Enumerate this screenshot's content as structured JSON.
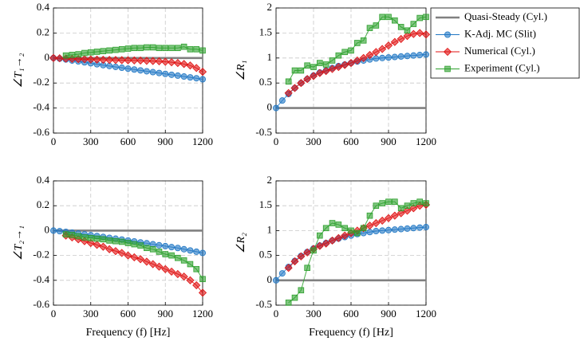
{
  "chart_data": [
    {
      "type": "line",
      "ylabel": "∠T₁→₂",
      "x": [
        0,
        50,
        100,
        150,
        200,
        250,
        300,
        350,
        400,
        450,
        500,
        550,
        600,
        650,
        700,
        750,
        800,
        850,
        900,
        950,
        1000,
        1050,
        1100,
        1150,
        1200
      ],
      "xlim": [
        0,
        1200
      ],
      "xticks": [
        0,
        300,
        600,
        900,
        1200
      ],
      "ylim": [
        -0.6,
        0.4
      ],
      "yticks": [
        -0.6,
        -0.4,
        -0.2,
        0,
        0.2,
        0.4
      ],
      "grid": true,
      "series": [
        {
          "color": "#808080",
          "marker": "none",
          "values": [
            0,
            0,
            0,
            0,
            0,
            0,
            0,
            0,
            0,
            0,
            0,
            0,
            0,
            0,
            0,
            0,
            0,
            0,
            0,
            0,
            0,
            0,
            0,
            0,
            0
          ]
        },
        {
          "color": "#1f77c4",
          "marker": "circle",
          "values": [
            0,
            -0.005,
            -0.012,
            -0.02,
            -0.027,
            -0.035,
            -0.042,
            -0.05,
            -0.057,
            -0.064,
            -0.071,
            -0.078,
            -0.085,
            -0.092,
            -0.099,
            -0.106,
            -0.113,
            -0.12,
            -0.127,
            -0.134,
            -0.141,
            -0.148,
            -0.155,
            -0.162,
            -0.17
          ]
        },
        {
          "color": "#e01010",
          "marker": "diamond",
          "values": [
            0,
            -0.002,
            -0.005,
            -0.007,
            -0.009,
            -0.01,
            -0.012,
            -0.013,
            -0.014,
            -0.015,
            -0.016,
            -0.017,
            -0.018,
            -0.019,
            -0.02,
            -0.022,
            -0.024,
            -0.026,
            -0.03,
            -0.034,
            -0.04,
            -0.048,
            -0.06,
            -0.08,
            -0.11
          ]
        },
        {
          "color": "#2ca02c",
          "marker": "square",
          "values": [
            null,
            null,
            0.02,
            0.025,
            0.03,
            0.04,
            0.045,
            0.05,
            0.055,
            0.06,
            0.065,
            0.07,
            0.075,
            0.08,
            0.08,
            0.085,
            0.085,
            0.08,
            0.08,
            0.08,
            0.08,
            0.09,
            0.07,
            0.07,
            0.06
          ]
        }
      ]
    },
    {
      "type": "line",
      "ylabel": "∠R₁",
      "legend": "right",
      "x": [
        0,
        50,
        100,
        150,
        200,
        250,
        300,
        350,
        400,
        450,
        500,
        550,
        600,
        650,
        700,
        750,
        800,
        850,
        900,
        950,
        1000,
        1050,
        1100,
        1150,
        1200
      ],
      "xlim": [
        0,
        1200
      ],
      "xticks": [
        0,
        300,
        600,
        900,
        1200
      ],
      "ylim": [
        -0.5,
        2
      ],
      "yticks": [
        -0.5,
        0,
        0.5,
        1,
        1.5,
        2
      ],
      "grid": true,
      "series": [
        {
          "name": "Quasi-Steady (Cyl.)",
          "color": "#808080",
          "marker": "none",
          "values": [
            0,
            0,
            0,
            0,
            0,
            0,
            0,
            0,
            0,
            0,
            0,
            0,
            0,
            0,
            0,
            0,
            0,
            0,
            0,
            0,
            0,
            0,
            0,
            0,
            0
          ]
        },
        {
          "name": "K-Adj. MC (Slit)",
          "color": "#1f77c4",
          "marker": "circle",
          "values": [
            0,
            0.15,
            0.28,
            0.4,
            0.5,
            0.58,
            0.65,
            0.71,
            0.75,
            0.8,
            0.84,
            0.87,
            0.9,
            0.93,
            0.95,
            0.97,
            0.99,
            1.0,
            1.01,
            1.02,
            1.03,
            1.04,
            1.05,
            1.06,
            1.07
          ]
        },
        {
          "name": "Numerical (Cyl.)",
          "color": "#e01010",
          "marker": "diamond",
          "values": [
            null,
            null,
            0.3,
            0.4,
            0.5,
            0.58,
            0.64,
            0.7,
            0.74,
            0.78,
            0.82,
            0.86,
            0.9,
            0.95,
            1.0,
            1.06,
            1.12,
            1.18,
            1.25,
            1.32,
            1.38,
            1.44,
            1.48,
            1.5,
            1.47
          ]
        },
        {
          "name": "Experiment (Cyl.)",
          "color": "#2ca02c",
          "marker": "square",
          "values": [
            null,
            null,
            0.53,
            0.75,
            0.75,
            0.85,
            0.82,
            0.9,
            0.87,
            0.95,
            1.05,
            1.12,
            1.15,
            1.3,
            1.35,
            1.6,
            1.65,
            1.82,
            1.82,
            1.75,
            1.62,
            1.55,
            1.68,
            1.8,
            1.82
          ]
        }
      ]
    },
    {
      "type": "line",
      "ylabel": "∠T₂→₁",
      "xlabel": "Frequency (f) [Hz]",
      "x": [
        0,
        50,
        100,
        150,
        200,
        250,
        300,
        350,
        400,
        450,
        500,
        550,
        600,
        650,
        700,
        750,
        800,
        850,
        900,
        950,
        1000,
        1050,
        1100,
        1150,
        1200
      ],
      "xlim": [
        0,
        1200
      ],
      "xticks": [
        0,
        300,
        600,
        900,
        1200
      ],
      "ylim": [
        -0.6,
        0.4
      ],
      "yticks": [
        -0.6,
        -0.4,
        -0.2,
        0,
        0.2,
        0.4
      ],
      "grid": true,
      "series": [
        {
          "color": "#808080",
          "marker": "none",
          "values": [
            0,
            0,
            0,
            0,
            0,
            0,
            0,
            0,
            0,
            0,
            0,
            0,
            0,
            0,
            0,
            0,
            0,
            0,
            0,
            0,
            0,
            0,
            0,
            0,
            0
          ]
        },
        {
          "color": "#1f77c4",
          "marker": "circle",
          "values": [
            0,
            -0.005,
            -0.01,
            -0.017,
            -0.024,
            -0.03,
            -0.037,
            -0.044,
            -0.051,
            -0.058,
            -0.065,
            -0.072,
            -0.08,
            -0.087,
            -0.095,
            -0.102,
            -0.11,
            -0.118,
            -0.125,
            -0.133,
            -0.14,
            -0.15,
            -0.16,
            -0.17,
            -0.18
          ]
        },
        {
          "color": "#e01010",
          "marker": "diamond",
          "values": [
            null,
            null,
            -0.04,
            -0.055,
            -0.07,
            -0.085,
            -0.1,
            -0.115,
            -0.13,
            -0.15,
            -0.165,
            -0.18,
            -0.2,
            -0.215,
            -0.23,
            -0.25,
            -0.27,
            -0.29,
            -0.31,
            -0.33,
            -0.35,
            -0.37,
            -0.4,
            -0.44,
            -0.5
          ]
        },
        {
          "color": "#2ca02c",
          "marker": "square",
          "values": [
            null,
            null,
            -0.03,
            -0.035,
            -0.045,
            -0.055,
            -0.06,
            -0.065,
            -0.07,
            -0.08,
            -0.085,
            -0.09,
            -0.1,
            -0.11,
            -0.12,
            -0.14,
            -0.15,
            -0.17,
            -0.19,
            -0.2,
            -0.22,
            -0.24,
            -0.27,
            -0.31,
            -0.39
          ]
        }
      ]
    },
    {
      "type": "line",
      "ylabel": "∠R₂",
      "xlabel": "Frequency (f) [Hz]",
      "x": [
        0,
        50,
        100,
        150,
        200,
        250,
        300,
        350,
        400,
        450,
        500,
        550,
        600,
        650,
        700,
        750,
        800,
        850,
        900,
        950,
        1000,
        1050,
        1100,
        1150,
        1200
      ],
      "xlim": [
        0,
        1200
      ],
      "xticks": [
        0,
        300,
        600,
        900,
        1200
      ],
      "ylim": [
        -0.5,
        2
      ],
      "yticks": [
        -0.5,
        0,
        0.5,
        1,
        1.5,
        2
      ],
      "grid": true,
      "series": [
        {
          "color": "#808080",
          "marker": "none",
          "values": [
            0,
            0,
            0,
            0,
            0,
            0,
            0,
            0,
            0,
            0,
            0,
            0,
            0,
            0,
            0,
            0,
            0,
            0,
            0,
            0,
            0,
            0,
            0,
            0,
            0
          ]
        },
        {
          "color": "#1f77c4",
          "marker": "circle",
          "values": [
            0,
            0.14,
            0.27,
            0.39,
            0.49,
            0.57,
            0.64,
            0.7,
            0.75,
            0.8,
            0.84,
            0.87,
            0.9,
            0.93,
            0.95,
            0.97,
            0.99,
            1.0,
            1.01,
            1.02,
            1.03,
            1.04,
            1.05,
            1.06,
            1.07
          ]
        },
        {
          "color": "#e01010",
          "marker": "diamond",
          "values": [
            null,
            null,
            0.25,
            0.38,
            0.48,
            0.56,
            0.63,
            0.69,
            0.74,
            0.8,
            0.85,
            0.9,
            0.95,
            1.0,
            1.05,
            1.1,
            1.15,
            1.2,
            1.25,
            1.3,
            1.35,
            1.4,
            1.45,
            1.5,
            1.52
          ]
        },
        {
          "color": "#2ca02c",
          "marker": "square",
          "values": [
            null,
            null,
            -0.45,
            -0.35,
            -0.2,
            0.25,
            0.6,
            0.9,
            1.05,
            1.15,
            1.12,
            1.05,
            1.0,
            0.95,
            1.05,
            1.3,
            1.5,
            1.55,
            1.58,
            1.58,
            1.45,
            1.5,
            1.55,
            1.58,
            1.55
          ]
        }
      ]
    }
  ]
}
